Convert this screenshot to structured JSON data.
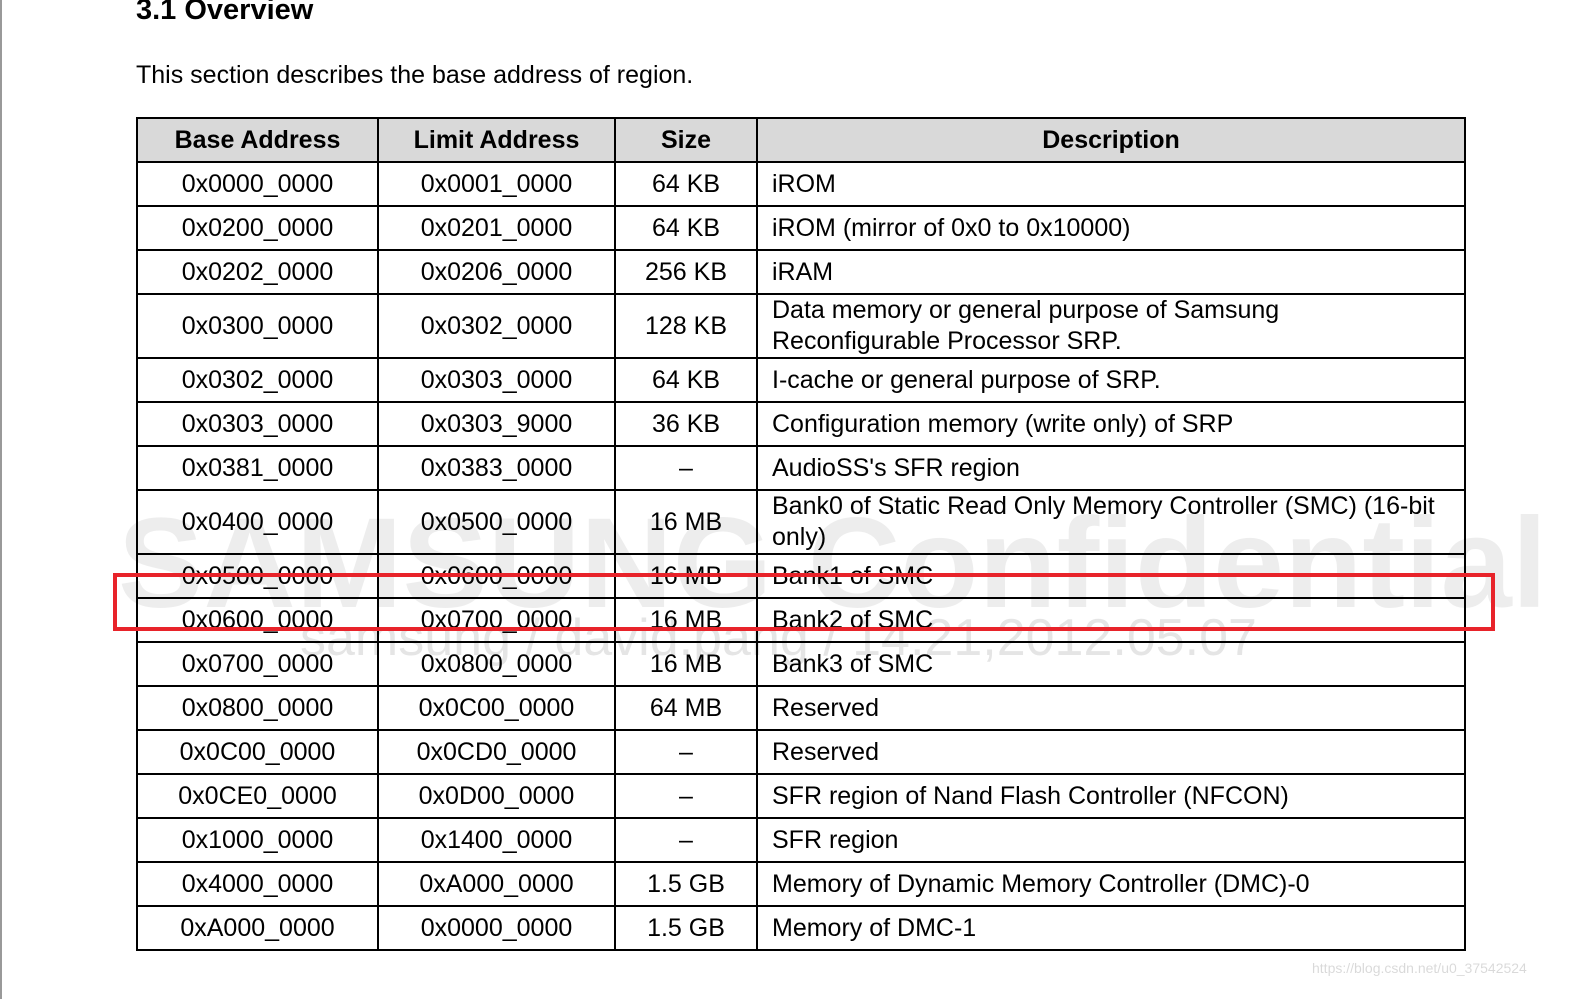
{
  "header": {
    "title": "3.1 Overview",
    "intro": "This section describes the base address of region."
  },
  "table": {
    "columns": [
      "Base Address",
      "Limit Address",
      "Size",
      "Description"
    ],
    "rows": [
      [
        "0x0000_0000",
        "0x0001_0000",
        "64 KB",
        "iROM"
      ],
      [
        "0x0200_0000",
        "0x0201_0000",
        "64 KB",
        "iROM (mirror of 0x0 to 0x10000)"
      ],
      [
        "0x0202_0000",
        "0x0206_0000",
        "256 KB",
        "iRAM"
      ],
      [
        "0x0300_0000",
        "0x0302_0000",
        "128 KB",
        "Data memory or general purpose of Samsung Reconfigurable Processor SRP."
      ],
      [
        "0x0302_0000",
        "0x0303_0000",
        "64 KB",
        "I-cache or general purpose of SRP."
      ],
      [
        "0x0303_0000",
        "0x0303_9000",
        "36 KB",
        "Configuration memory (write only) of SRP"
      ],
      [
        "0x0381_0000",
        "0x0383_0000",
        "–",
        "AudioSS's SFR region"
      ],
      [
        "0x0400_0000",
        "0x0500_0000",
        "16 MB",
        "Bank0 of Static Read Only Memory Controller (SMC) (16-bit only)"
      ],
      [
        "0x0500_0000",
        "0x0600_0000",
        "16 MB",
        "Bank1 of SMC"
      ],
      [
        "0x0600_0000",
        "0x0700_0000",
        "16 MB",
        "Bank2 of SMC"
      ],
      [
        "0x0700_0000",
        "0x0800_0000",
        "16 MB",
        "Bank3 of SMC"
      ],
      [
        "0x0800_0000",
        "0x0C00_0000",
        "64 MB",
        "Reserved"
      ],
      [
        "0x0C00_0000",
        "0x0CD0_0000",
        "–",
        "Reserved"
      ],
      [
        "0x0CE0_0000",
        "0x0D00_0000",
        "–",
        "SFR region of Nand Flash Controller (NFCON)"
      ],
      [
        "0x1000_0000",
        "0x1400_0000",
        "–",
        "SFR region"
      ],
      [
        "0x4000_0000",
        "0xA000_0000",
        "1.5 GB",
        "Memory of Dynamic Memory Controller (DMC)-0"
      ],
      [
        "0xA000_0000",
        "0x0000_0000",
        "1.5 GB",
        "Memory of DMC-1"
      ]
    ]
  },
  "watermark": {
    "main": "SAMSUNG Confidential",
    "sub": "samsung / david.pang / 14.21,2012.05.07",
    "source": "https://blog.csdn.net/u0_37542524"
  }
}
